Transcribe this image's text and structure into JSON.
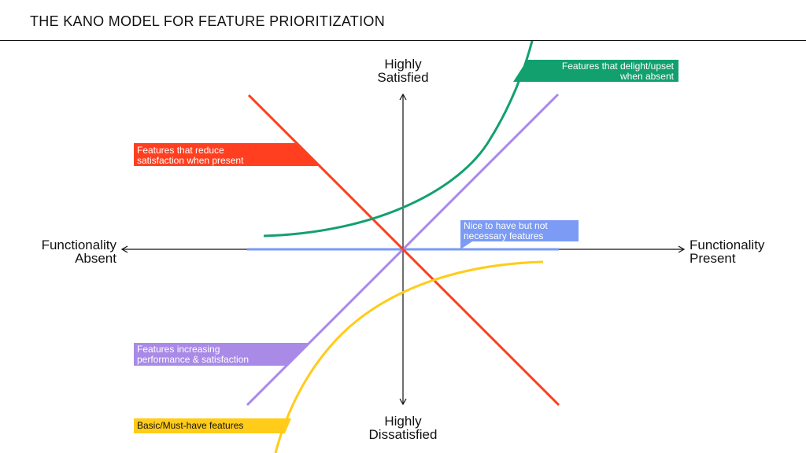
{
  "title": "THE KANO MODEL FOR FEATURE PRIORITIZATION",
  "axes": {
    "top": [
      "Highly",
      "Satisfied"
    ],
    "bottom": [
      "Highly",
      "Dissatisfied"
    ],
    "left": [
      "Functionality",
      "Absent"
    ],
    "right": [
      "Functionality",
      "Present"
    ]
  },
  "curves": [
    {
      "id": "delight",
      "color": "#12a06f",
      "label": [
        "Features that delight/upset",
        "when absent"
      ]
    },
    {
      "id": "reverse",
      "color": "#ff3f1f",
      "label": [
        "Features that reduce",
        "satisfaction when present"
      ]
    },
    {
      "id": "indifferent",
      "color": "#7b9bf4",
      "label": [
        "Nice to have but not",
        "necessary features"
      ]
    },
    {
      "id": "performance",
      "color": "#a98ae6",
      "label": [
        "Features increasing",
        "performance & satisfaction"
      ]
    },
    {
      "id": "basic",
      "color": "#ffcc1a",
      "label": [
        "Basic/Must-have features"
      ]
    }
  ],
  "axis_color": "#111111"
}
